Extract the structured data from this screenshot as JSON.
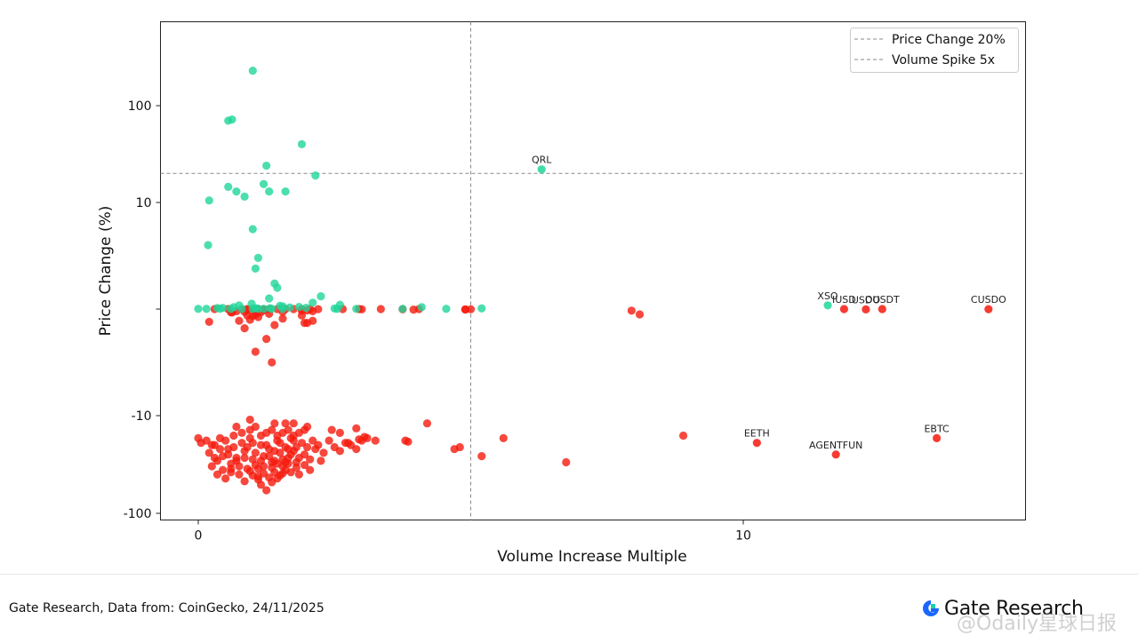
{
  "chart_data": {
    "type": "scatter",
    "title": "",
    "xlabel": "Volume Increase Multiple",
    "ylabel": "Price Change (%)",
    "x_ticks": [
      0,
      10
    ],
    "y_ticks": [
      100,
      10,
      -10,
      -100
    ],
    "y_tick_labels": [
      "100",
      "10",
      "-10",
      "-100"
    ],
    "y_scale": "symlog",
    "xlim": [
      -0.6,
      15.2
    ],
    "ylim": [
      -118,
      330
    ],
    "grid": false,
    "legend_position": "top-right",
    "legend": [
      "Price Change 20%",
      "Volume Spike 5x"
    ],
    "reference_lines": {
      "price_change": 20,
      "volume_spike": 5
    },
    "colors": {
      "positive": "#1fd69a",
      "negative": "#f51a0e",
      "reference": "#8a8a8a"
    },
    "labeled_points": [
      {
        "label": "QRL",
        "x": 6.3,
        "y": 22
      },
      {
        "label": "XSO",
        "x": 11.55,
        "y": 0.35
      },
      {
        "label": "IUSD",
        "x": 11.85,
        "y": 0
      },
      {
        "label": "USDO",
        "x": 12.25,
        "y": -0.03
      },
      {
        "label": "OUSDT",
        "x": 12.55,
        "y": 0
      },
      {
        "label": "CUSDO",
        "x": 14.5,
        "y": -0.01
      },
      {
        "label": "EETH",
        "x": 10.25,
        "y": -19
      },
      {
        "label": "AGENTFUN",
        "x": 11.7,
        "y": -25
      },
      {
        "label": "EBTC",
        "x": 13.55,
        "y": -17
      }
    ],
    "positive_points": [
      [
        1.0,
        230
      ],
      [
        0.55,
        70
      ],
      [
        0.62,
        72
      ],
      [
        1.9,
        40
      ],
      [
        1.25,
        24
      ],
      [
        2.15,
        19
      ],
      [
        0.55,
        14.5
      ],
      [
        0.7,
        13
      ],
      [
        0.85,
        11.5
      ],
      [
        1.2,
        15.5
      ],
      [
        1.3,
        13
      ],
      [
        1.6,
        13
      ],
      [
        0.2,
        10.5
      ],
      [
        0.18,
        6
      ],
      [
        1.0,
        7.5
      ],
      [
        1.1,
        4.8
      ],
      [
        1.05,
        3.8
      ],
      [
        1.4,
        2.4
      ],
      [
        1.45,
        2.0
      ],
      [
        2.25,
        1.2
      ],
      [
        1.3,
        1.0
      ],
      [
        2.1,
        0.6
      ],
      [
        0.98,
        0.5
      ],
      [
        2.6,
        0.4
      ],
      [
        0.75,
        0.35
      ],
      [
        1.5,
        0.3
      ],
      [
        1.55,
        0.25
      ],
      [
        1.85,
        0.2
      ],
      [
        0.65,
        0.18
      ],
      [
        1.68,
        0.15
      ],
      [
        4.1,
        0.18
      ],
      [
        1.98,
        0.12
      ],
      [
        0.35,
        0.1
      ],
      [
        0.45,
        0.11
      ],
      [
        1.05,
        0.09
      ],
      [
        1.32,
        0.08
      ],
      [
        0.0,
        0.02
      ],
      [
        0.15,
        0.02
      ],
      [
        0.4,
        0.03
      ],
      [
        0.6,
        0.02
      ],
      [
        0.8,
        0.01
      ],
      [
        1.0,
        0.02
      ],
      [
        1.1,
        0.03
      ],
      [
        1.2,
        0.02
      ],
      [
        1.35,
        0.02
      ],
      [
        1.55,
        0.01
      ],
      [
        2.5,
        0.05
      ],
      [
        2.55,
        0.02
      ],
      [
        2.9,
        0.02
      ],
      [
        3.75,
        0.02
      ],
      [
        4.55,
        0.02
      ],
      [
        5.2,
        0.06
      ]
    ],
    "negative_points": [
      [
        0.3,
        0
      ],
      [
        0.55,
        0
      ],
      [
        0.8,
        -0.01
      ],
      [
        0.9,
        0
      ],
      [
        1.0,
        0
      ],
      [
        1.1,
        0
      ],
      [
        1.2,
        -0.01
      ],
      [
        1.3,
        0
      ],
      [
        1.45,
        0
      ],
      [
        1.6,
        0
      ],
      [
        1.75,
        0
      ],
      [
        1.9,
        -0.02
      ],
      [
        2.05,
        0
      ],
      [
        2.2,
        -0.01
      ],
      [
        2.65,
        0
      ],
      [
        2.95,
        0
      ],
      [
        3.0,
        -0.02
      ],
      [
        3.35,
        0
      ],
      [
        3.75,
        -0.02
      ],
      [
        3.95,
        -0.05
      ],
      [
        4.05,
        0
      ],
      [
        4.9,
        -0.04
      ],
      [
        4.9,
        -0.03
      ],
      [
        5.0,
        -0.02
      ],
      [
        0.9,
        -0.05
      ],
      [
        1.05,
        -0.1
      ],
      [
        1.2,
        -0.1
      ],
      [
        0.7,
        -0.2
      ],
      [
        0.85,
        -0.25
      ],
      [
        1.15,
        -0.3
      ],
      [
        1.55,
        -0.25
      ],
      [
        1.9,
        -0.15
      ],
      [
        2.0,
        -0.12
      ],
      [
        2.1,
        -0.2
      ],
      [
        0.6,
        -0.3
      ],
      [
        0.62,
        -0.32
      ],
      [
        1.05,
        -0.5
      ],
      [
        1.3,
        -0.45
      ],
      [
        1.9,
        -0.6
      ],
      [
        0.9,
        -0.6
      ],
      [
        1.1,
        -0.75
      ],
      [
        1.0,
        -0.65
      ],
      [
        0.75,
        -1.1
      ],
      [
        0.95,
        -1.0
      ],
      [
        1.55,
        -0.9
      ],
      [
        1.95,
        -1.3
      ],
      [
        2.0,
        -1.3
      ],
      [
        2.1,
        -1.1
      ],
      [
        0.85,
        -1.8
      ],
      [
        1.4,
        -1.5
      ],
      [
        1.25,
        -2.8
      ],
      [
        0.2,
        -1.2
      ],
      [
        1.05,
        -4.0
      ],
      [
        1.35,
        -5.0
      ],
      [
        7.95,
        -0.15
      ],
      [
        8.1,
        -0.5
      ],
      [
        4.2,
        -12
      ],
      [
        5.6,
        -17
      ],
      [
        8.9,
        -16
      ],
      [
        6.75,
        -30
      ],
      [
        5.2,
        -26
      ],
      [
        4.7,
        -22
      ],
      [
        4.8,
        -21
      ],
      [
        3.8,
        -18
      ],
      [
        3.85,
        -18.5
      ],
      [
        3.25,
        -18
      ],
      [
        2.95,
        -17.5
      ],
      [
        2.75,
        -19
      ],
      [
        2.0,
        -13
      ],
      [
        0.95,
        -11
      ],
      [
        0.7,
        -13
      ],
      [
        1.4,
        -12
      ],
      [
        1.6,
        -12
      ],
      [
        1.75,
        -12
      ],
      [
        2.45,
        -14
      ],
      [
        2.6,
        -15
      ],
      [
        2.9,
        -13.5
      ],
      [
        3.05,
        -16.5
      ],
      [
        0.0,
        -17
      ],
      [
        0.05,
        -19
      ],
      [
        0.15,
        -18
      ],
      [
        0.2,
        -24
      ],
      [
        0.25,
        -33
      ],
      [
        0.3,
        -20
      ],
      [
        0.35,
        -29
      ],
      [
        0.4,
        -22
      ],
      [
        0.45,
        -36
      ],
      [
        0.5,
        -18
      ],
      [
        0.55,
        -25
      ],
      [
        0.6,
        -31
      ],
      [
        0.65,
        -21
      ],
      [
        0.7,
        -27
      ],
      [
        0.75,
        -40
      ],
      [
        0.8,
        -19
      ],
      [
        0.85,
        -23
      ],
      [
        0.9,
        -35
      ],
      [
        0.95,
        -17
      ],
      [
        1.0,
        -28
      ],
      [
        1.05,
        -32
      ],
      [
        1.1,
        -42
      ],
      [
        1.15,
        -20
      ],
      [
        1.2,
        -26
      ],
      [
        1.25,
        -58
      ],
      [
        1.3,
        -22
      ],
      [
        1.35,
        -30
      ],
      [
        1.4,
        -38
      ],
      [
        1.45,
        -18
      ],
      [
        1.5,
        -24
      ],
      [
        1.55,
        -33
      ],
      [
        1.6,
        -21
      ],
      [
        1.65,
        -27
      ],
      [
        1.7,
        -17
      ],
      [
        1.75,
        -23
      ],
      [
        1.8,
        -30
      ],
      [
        1.85,
        -40
      ],
      [
        1.9,
        -19
      ],
      [
        1.95,
        -25
      ],
      [
        2.0,
        -21
      ],
      [
        2.05,
        -28
      ],
      [
        2.1,
        -18
      ],
      [
        2.15,
        -22
      ],
      [
        2.2,
        -20
      ],
      [
        2.3,
        -24
      ],
      [
        2.4,
        -18
      ],
      [
        2.5,
        -21
      ],
      [
        2.6,
        -23
      ],
      [
        2.7,
        -19
      ],
      [
        2.8,
        -20
      ],
      [
        2.9,
        -22
      ],
      [
        3.0,
        -18
      ],
      [
        3.1,
        -17
      ],
      [
        0.65,
        -16
      ],
      [
        0.8,
        -15
      ],
      [
        0.95,
        -14
      ],
      [
        1.05,
        -13
      ],
      [
        1.15,
        -16
      ],
      [
        1.25,
        -15
      ],
      [
        1.35,
        -14
      ],
      [
        1.45,
        -16
      ],
      [
        1.55,
        -15
      ],
      [
        1.65,
        -14
      ],
      [
        1.75,
        -16
      ],
      [
        1.85,
        -15
      ],
      [
        1.95,
        -14
      ],
      [
        1.1,
        -45
      ],
      [
        1.35,
        -48
      ],
      [
        0.5,
        -44
      ],
      [
        0.35,
        -40
      ],
      [
        0.6,
        -38
      ],
      [
        0.85,
        -27
      ],
      [
        0.9,
        -21
      ],
      [
        1.0,
        -19
      ],
      [
        1.05,
        -24
      ],
      [
        1.15,
        -29
      ],
      [
        1.2,
        -33
      ],
      [
        1.25,
        -20
      ],
      [
        1.3,
        -26
      ],
      [
        1.4,
        -23
      ],
      [
        1.45,
        -31
      ],
      [
        1.5,
        -19
      ],
      [
        1.55,
        -28
      ],
      [
        1.6,
        -36
      ],
      [
        1.65,
        -22
      ],
      [
        1.7,
        -25
      ],
      [
        1.75,
        -18
      ],
      [
        1.8,
        -21
      ],
      [
        1.85,
        -27
      ],
      [
        0.7,
        -29
      ],
      [
        0.55,
        -22
      ],
      [
        0.45,
        -26
      ],
      [
        0.4,
        -17
      ],
      [
        0.25,
        -20
      ],
      [
        0.3,
        -27
      ],
      [
        0.75,
        -33
      ],
      [
        1.95,
        -32
      ],
      [
        2.05,
        -36
      ],
      [
        2.25,
        -29
      ],
      [
        0.95,
        -37
      ],
      [
        1.0,
        -41
      ],
      [
        1.1,
        -35
      ],
      [
        1.2,
        -39
      ],
      [
        1.3,
        -43
      ],
      [
        1.4,
        -29
      ],
      [
        1.5,
        -41
      ],
      [
        1.6,
        -30
      ],
      [
        1.7,
        -38
      ],
      [
        1.8,
        -34
      ],
      [
        0.6,
        -35
      ],
      [
        0.85,
        -47
      ],
      [
        1.15,
        -51
      ],
      [
        1.35,
        -34
      ],
      [
        1.45,
        -44
      ],
      [
        1.55,
        -39
      ],
      [
        1.65,
        -31
      ]
    ]
  },
  "footer": {
    "source": "Gate Research, Data from: CoinGecko, 24/11/2025",
    "brand_name": "Gate Research",
    "watermark": "@Odaily星球日报"
  }
}
